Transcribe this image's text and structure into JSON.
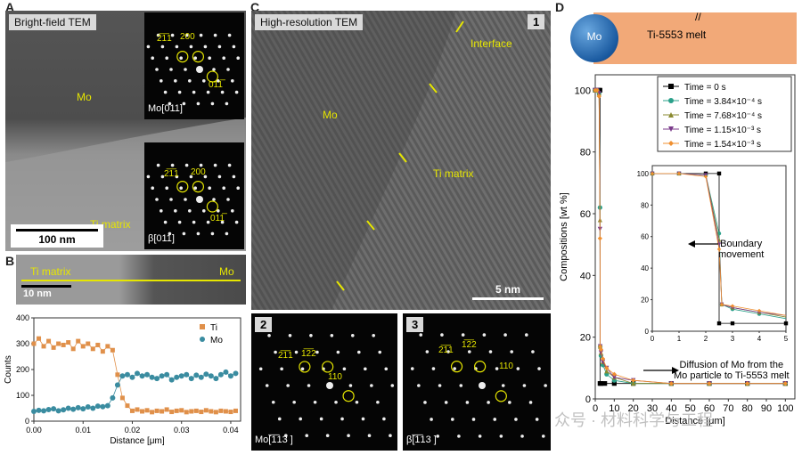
{
  "panelA": {
    "letter": "A",
    "tag": "Bright-field TEM",
    "mo": "Mo",
    "ti": "Ti matrix",
    "scale": "100 nm",
    "sad1": {
      "label": "Mo[011]",
      "a": "2̅1̅1",
      "b": "200",
      "c": "011̅"
    },
    "sad2": {
      "label": "β[011]",
      "a": "2̅1̅1",
      "b": "200",
      "c": "011̅"
    }
  },
  "panelB": {
    "letter": "B",
    "ti": "Ti matrix",
    "mo": "Mo",
    "scale": "10 nm"
  },
  "panelC": {
    "letter": "C",
    "tag": "High-resolution TEM",
    "num1": "1",
    "interface": "Interface",
    "mo": "Mo",
    "ti": "Ti matrix",
    "scale": "5 nm",
    "sad2": {
      "num": "2",
      "label": "Mo[̅1̅13 ]",
      "a": "2̅1̅̅1",
      "b": "1̅2̅2",
      "c": "110"
    },
    "sad3": {
      "num": "3",
      "label": "β[̅1̅13 ]",
      "a": "2̅1̅̅1",
      "b": "1̅2̅2",
      "c": "110"
    }
  },
  "panelD": {
    "letter": "D",
    "mo": "Mo",
    "melt": "Ti-5553 melt",
    "break": "//",
    "boundary1": "Boundary",
    "boundary2": "movement",
    "diff1": "Diffusion of Mo from the",
    "diff2": "Mo particle to Ti-5553 melt",
    "watermark": "众号 · 材料科学与工程"
  },
  "chart_data": [
    {
      "type": "line",
      "xlabel": "Distance [μm]",
      "ylabel": "Counts",
      "xlim": [
        0,
        0.042
      ],
      "ylim": [
        0,
        400
      ],
      "xticks": [
        "0.00",
        "0.01",
        "0.02",
        "0.03",
        "0.04"
      ],
      "yticks": [
        "0",
        "100",
        "200",
        "300",
        "400"
      ],
      "legend": "top-right",
      "series": [
        {
          "name": "Ti",
          "color": "#e0904a",
          "x": [
            0,
            0.001,
            0.002,
            0.003,
            0.004,
            0.005,
            0.006,
            0.007,
            0.008,
            0.009,
            0.01,
            0.011,
            0.012,
            0.013,
            0.014,
            0.015,
            0.016,
            0.017,
            0.018,
            0.019,
            0.02,
            0.021,
            0.022,
            0.023,
            0.024,
            0.025,
            0.026,
            0.027,
            0.028,
            0.029,
            0.03,
            0.031,
            0.032,
            0.033,
            0.034,
            0.035,
            0.036,
            0.037,
            0.038,
            0.039,
            0.04,
            0.041
          ],
          "y": [
            300,
            320,
            290,
            310,
            285,
            300,
            295,
            305,
            280,
            310,
            290,
            300,
            280,
            295,
            270,
            290,
            275,
            180,
            90,
            60,
            40,
            45,
            38,
            42,
            35,
            40,
            38,
            45,
            36,
            40,
            42,
            35,
            38,
            40,
            36,
            42,
            38,
            35,
            40,
            38,
            36,
            40
          ]
        },
        {
          "name": "Mo",
          "color": "#3a8ca0",
          "x": [
            0,
            0.001,
            0.002,
            0.003,
            0.004,
            0.005,
            0.006,
            0.007,
            0.008,
            0.009,
            0.01,
            0.011,
            0.012,
            0.013,
            0.014,
            0.015,
            0.016,
            0.017,
            0.018,
            0.019,
            0.02,
            0.021,
            0.022,
            0.023,
            0.024,
            0.025,
            0.026,
            0.027,
            0.028,
            0.029,
            0.03,
            0.031,
            0.032,
            0.033,
            0.034,
            0.035,
            0.036,
            0.037,
            0.038,
            0.039,
            0.04,
            0.041
          ],
          "y": [
            38,
            42,
            40,
            45,
            48,
            40,
            44,
            50,
            46,
            52,
            48,
            55,
            50,
            58,
            56,
            60,
            90,
            140,
            175,
            180,
            170,
            185,
            175,
            180,
            170,
            165,
            175,
            180,
            160,
            170,
            175,
            180,
            165,
            178,
            170,
            182,
            175,
            165,
            180,
            190,
            175,
            185
          ]
        }
      ]
    },
    {
      "type": "scatter",
      "xlabel": "Distance [μm]",
      "ylabel": "Compositions [wt %]",
      "xlim": [
        0,
        105
      ],
      "ylim": [
        0,
        105
      ],
      "xticks": [
        "0",
        "10",
        "20",
        "30",
        "40",
        "50",
        "60",
        "70",
        "80",
        "90",
        "100"
      ],
      "yticks": [
        "0",
        "20",
        "40",
        "60",
        "80",
        "100"
      ],
      "legend": "top-right",
      "series": [
        {
          "name": "Time = 0 s",
          "color": "#000000",
          "x": [
            0,
            1,
            2,
            2.5,
            2.5,
            3,
            5,
            10,
            20,
            40,
            60,
            80,
            100
          ],
          "y": [
            100,
            100,
            100,
            100,
            5,
            5,
            5,
            5,
            5,
            5,
            5,
            5,
            5
          ]
        },
        {
          "name": "Time = 3.84×10⁻⁴ s",
          "color": "#2aa08a",
          "x": [
            0,
            1,
            2,
            2.5,
            2.6,
            3,
            4,
            6,
            10,
            20,
            40,
            60,
            80,
            100
          ],
          "y": [
            100,
            100,
            99,
            62,
            17,
            14,
            11,
            8,
            6,
            5,
            5,
            5,
            5,
            5
          ]
        },
        {
          "name": "Time = 7.68×10⁻⁴ s",
          "color": "#8a8a30",
          "x": [
            0,
            1,
            2,
            2.5,
            2.6,
            3,
            4,
            6,
            10,
            20,
            40,
            60,
            80,
            100
          ],
          "y": [
            100,
            100,
            99,
            58,
            17,
            15,
            12,
            9,
            7,
            5,
            5,
            5,
            5,
            5
          ]
        },
        {
          "name": "Time = 1.15×10⁻³ s",
          "color": "#7a3a8a",
          "x": [
            0,
            1,
            2,
            2.5,
            2.6,
            3,
            4,
            6,
            10,
            20,
            40,
            60,
            80,
            100
          ],
          "y": [
            100,
            100,
            99,
            55,
            17,
            15,
            12,
            10,
            7,
            6,
            5,
            5,
            5,
            5
          ]
        },
        {
          "name": "Time = 1.54×10⁻³ s",
          "color": "#f09030",
          "x": [
            0,
            1,
            2,
            2.5,
            2.6,
            3,
            4,
            6,
            10,
            20,
            40,
            60,
            80,
            100
          ],
          "y": [
            100,
            100,
            98,
            52,
            17,
            16,
            13,
            10,
            8,
            6,
            5,
            5,
            5,
            5
          ]
        }
      ]
    },
    {
      "type": "scatter",
      "role": "inset",
      "xlim": [
        0,
        5
      ],
      "ylim": [
        0,
        105
      ],
      "xticks": [
        "0",
        "1",
        "2",
        "3",
        "4",
        "5"
      ],
      "yticks": [
        "0",
        "20",
        "40",
        "60",
        "80",
        "100"
      ]
    }
  ]
}
